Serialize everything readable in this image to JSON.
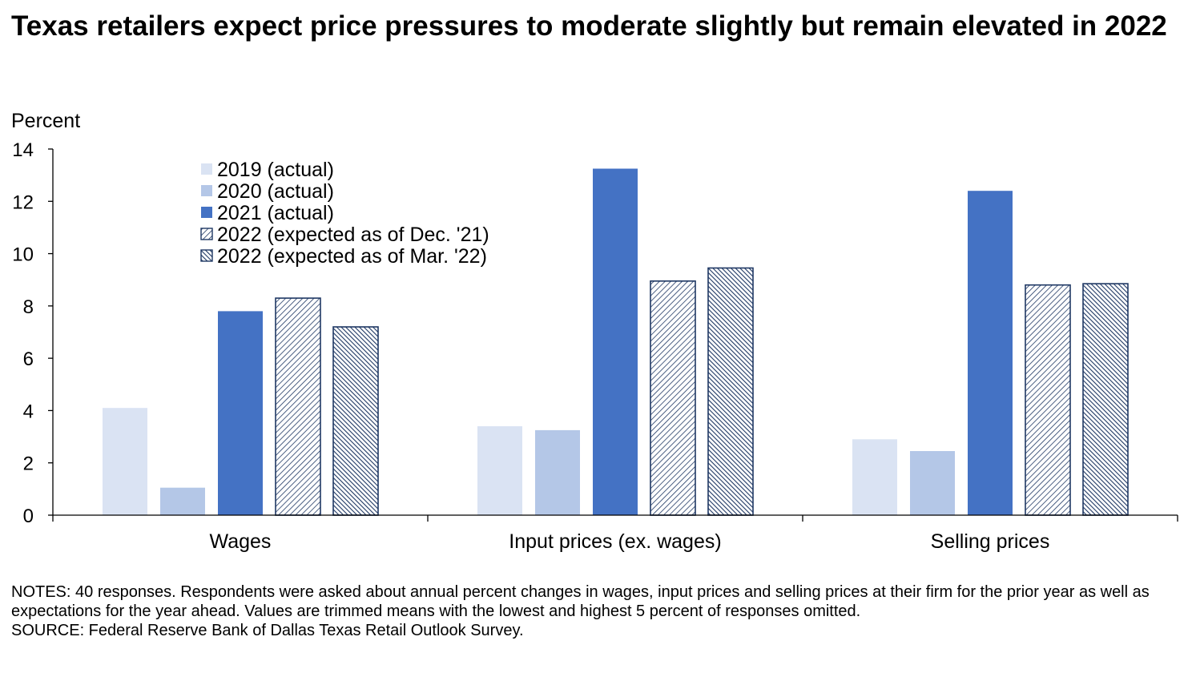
{
  "title": "Texas retailers expect price pressures to moderate slightly but remain elevated in 2022",
  "notes": "NOTES: 40 responses. Respondents were asked about annual percent changes in wages, input prices and selling prices at their firm for the prior year as well as expectations for the year ahead. Values are trimmed means with the lowest and highest 5 percent of responses omitted.",
  "source": "SOURCE: Federal Reserve Bank of Dallas Texas Retail Outlook Survey.",
  "chart_data": {
    "type": "bar",
    "title": "",
    "xlabel": "",
    "ylabel": "Percent",
    "ylim": [
      0,
      14
    ],
    "yticks": [
      0,
      2,
      4,
      6,
      8,
      10,
      12,
      14
    ],
    "grid": false,
    "legend_position": "top-left",
    "categories": [
      "Wages",
      "Input prices (ex. wages)",
      "Selling prices"
    ],
    "series": [
      {
        "name": "2019 (actual)",
        "values": [
          4.1,
          3.4,
          2.9
        ],
        "color": "#dae3f3",
        "pattern": "solid"
      },
      {
        "name": "2020 (actual)",
        "values": [
          1.05,
          3.25,
          2.45
        ],
        "color": "#b4c7e7",
        "pattern": "solid"
      },
      {
        "name": "2021 (actual)",
        "values": [
          7.8,
          13.25,
          12.4
        ],
        "color": "#4472c4",
        "pattern": "solid"
      },
      {
        "name": "2022 (expected as of Dec. '21)",
        "values": [
          8.3,
          8.95,
          8.8
        ],
        "color": "#1f3864",
        "pattern": "hatch-light"
      },
      {
        "name": "2022 (expected as of Mar. '22)",
        "values": [
          7.2,
          9.45,
          8.85
        ],
        "color": "#1f3864",
        "pattern": "hatch-dense"
      }
    ]
  }
}
